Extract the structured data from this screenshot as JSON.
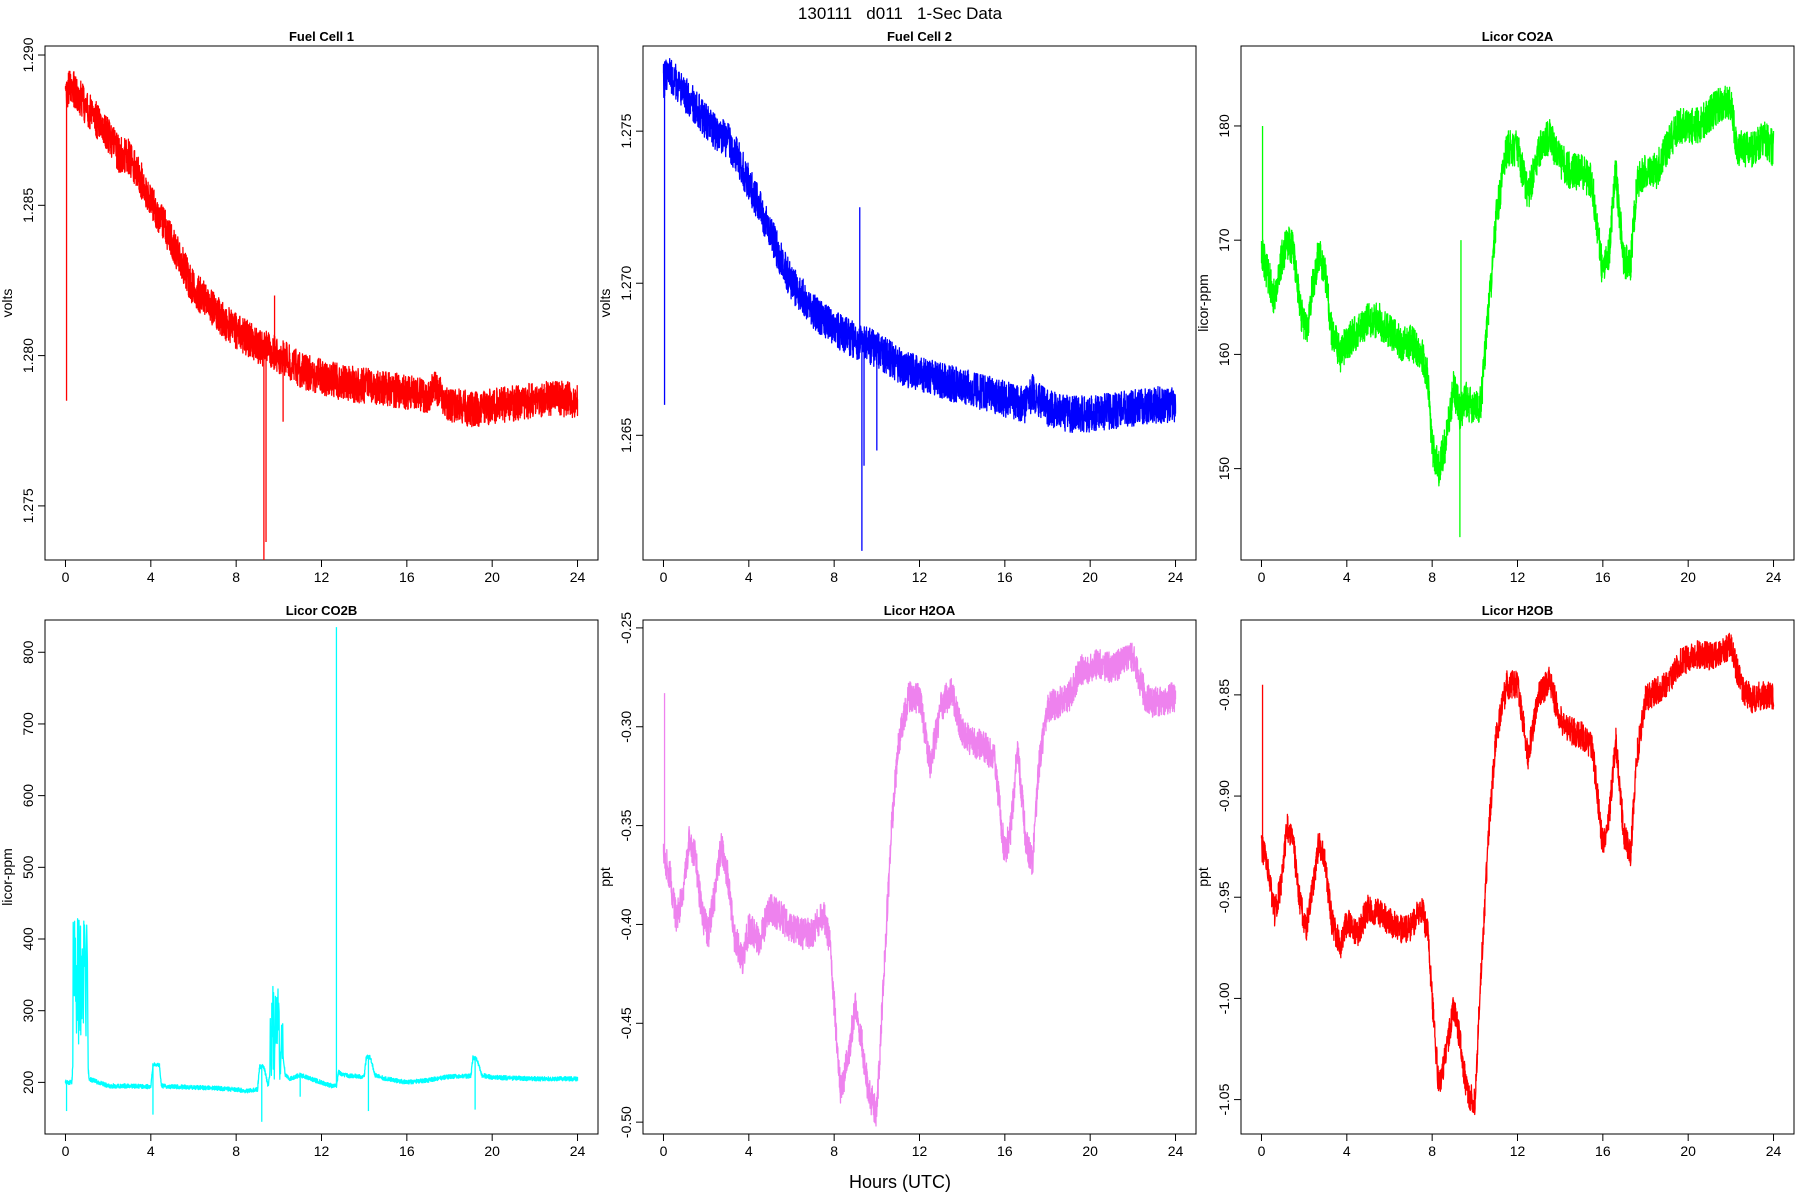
{
  "page": {
    "title": "130111   d011   1-Sec Data",
    "xlabel": "Hours (UTC)"
  },
  "chart_data": [
    {
      "type": "line",
      "title": "Fuel Cell 1",
      "ylabel": "volts",
      "color": "#ff0000",
      "xlim": [
        0,
        24
      ],
      "ylim": [
        1.2732,
        1.2903
      ],
      "xticks": [
        "0",
        "4",
        "8",
        "12",
        "16",
        "20",
        "24"
      ],
      "yticks": [
        "1.275",
        "1.280",
        "1.285",
        "1.290"
      ],
      "noise": 0.0006,
      "x": [
        0,
        0.2,
        0.5,
        1,
        1.5,
        2,
        2.5,
        3,
        3.5,
        4,
        4.5,
        5,
        5.5,
        6,
        6.5,
        7,
        7.5,
        8,
        8.5,
        9,
        9.5,
        10,
        10.5,
        11,
        12,
        13,
        14,
        15,
        16,
        17,
        17.3,
        18,
        19,
        20,
        21,
        22,
        23,
        24
      ],
      "y": [
        1.2886,
        1.289,
        1.2888,
        1.2882,
        1.2878,
        1.2873,
        1.2867,
        1.2866,
        1.2859,
        1.2852,
        1.2845,
        1.2838,
        1.283,
        1.2822,
        1.2819,
        1.2815,
        1.2811,
        1.2808,
        1.2806,
        1.2803,
        1.2802,
        1.28,
        1.2798,
        1.2795,
        1.2793,
        1.2791,
        1.279,
        1.2789,
        1.2788,
        1.2786,
        1.2789,
        1.2784,
        1.2782,
        1.2783,
        1.2784,
        1.2785,
        1.2786,
        1.2785
      ],
      "spikes": [
        [
          0.05,
          1.2785
        ],
        [
          9.3,
          1.2732
        ],
        [
          9.4,
          1.2738
        ],
        [
          9.8,
          1.282
        ],
        [
          10.2,
          1.2778
        ]
      ]
    },
    {
      "type": "line",
      "title": "Fuel Cell 2",
      "ylabel": "volts",
      "color": "#0000ff",
      "xlim": [
        0,
        24
      ],
      "ylim": [
        1.2609,
        1.2778
      ],
      "xticks": [
        "0",
        "4",
        "8",
        "12",
        "16",
        "20",
        "24"
      ],
      "yticks": [
        "1.265",
        "1.270",
        "1.275"
      ],
      "noise": 0.0006,
      "x": [
        0,
        0.2,
        0.5,
        1,
        1.5,
        2,
        2.5,
        3,
        3.5,
        4,
        4.5,
        5,
        5.5,
        6,
        6.5,
        7,
        7.5,
        8,
        8.5,
        9,
        9.5,
        10,
        10.5,
        11,
        12,
        13,
        14,
        15,
        16,
        17,
        17.3,
        18,
        19,
        20,
        21,
        22,
        23,
        24
      ],
      "y": [
        1.2766,
        1.277,
        1.2767,
        1.2762,
        1.2758,
        1.2753,
        1.2749,
        1.2747,
        1.2741,
        1.2733,
        1.2725,
        1.2717,
        1.2708,
        1.27,
        1.2696,
        1.2691,
        1.2688,
        1.2685,
        1.2683,
        1.2681,
        1.268,
        1.2678,
        1.2676,
        1.2673,
        1.267,
        1.2668,
        1.2666,
        1.2664,
        1.2662,
        1.266,
        1.2664,
        1.2659,
        1.2657,
        1.2657,
        1.2658,
        1.2659,
        1.266,
        1.266
      ],
      "spikes": [
        [
          0.05,
          1.266
        ],
        [
          9.3,
          1.2612
        ],
        [
          9.2,
          1.2725
        ],
        [
          9.4,
          1.264
        ],
        [
          10.0,
          1.2645
        ]
      ]
    },
    {
      "type": "line",
      "title": "Licor CO2A",
      "ylabel": "licor-ppm",
      "color": "#00ff00",
      "xlim": [
        0,
        24
      ],
      "ylim": [
        142,
        187
      ],
      "xticks": [
        "0",
        "4",
        "8",
        "12",
        "16",
        "20",
        "24"
      ],
      "yticks": [
        "150",
        "160",
        "170",
        "180"
      ],
      "noise": 1.6,
      "x": [
        0,
        0.3,
        0.6,
        0.9,
        1.2,
        1.5,
        1.8,
        2.1,
        2.4,
        2.7,
        3.0,
        3.3,
        3.7,
        4.0,
        4.5,
        5.0,
        5.5,
        6.0,
        6.5,
        7.0,
        7.5,
        7.8,
        8.0,
        8.3,
        8.6,
        9.0,
        9.3,
        9.6,
        10.0,
        10.3,
        10.7,
        11.0,
        11.5,
        12.0,
        12.5,
        13.0,
        13.5,
        14.0,
        14.5,
        15.0,
        15.5,
        16.0,
        16.3,
        16.6,
        17.0,
        17.3,
        17.6,
        18.0,
        18.5,
        19.0,
        19.5,
        20.0,
        20.5,
        21.0,
        21.5,
        22.0,
        22.3,
        22.6,
        23.0,
        23.5,
        24.0
      ],
      "y": [
        169,
        167,
        165,
        168,
        170,
        169,
        164,
        162,
        166,
        169,
        167,
        162,
        160,
        161,
        162,
        163,
        163,
        162,
        161,
        161,
        160,
        158,
        152,
        150,
        152,
        157,
        155,
        156,
        155,
        156,
        165,
        172,
        178,
        178,
        174,
        178,
        179,
        177,
        176,
        176,
        175,
        167,
        169,
        176,
        168,
        168,
        175,
        176,
        176,
        178,
        180,
        180,
        180,
        181,
        182,
        182,
        178,
        178,
        178,
        179,
        178
      ],
      "spikes": [
        [
          0.05,
          180
        ],
        [
          9.3,
          144
        ],
        [
          9.35,
          170
        ]
      ]
    },
    {
      "type": "line",
      "title": "Licor CO2B",
      "ylabel": "licor-ppm",
      "color": "#00ffff",
      "xlim": [
        0,
        24
      ],
      "ylim": [
        128,
        845
      ],
      "xticks": [
        "0",
        "4",
        "8",
        "12",
        "16",
        "20",
        "24"
      ],
      "yticks": [
        "200",
        "300",
        "400",
        "500",
        "600",
        "700",
        "800"
      ],
      "noise": 3,
      "x": [
        0,
        0.3,
        0.5,
        0.7,
        0.9,
        1.1,
        2.0,
        3.0,
        4.0,
        4.1,
        4.4,
        4.5,
        5.0,
        6.0,
        7.0,
        8.0,
        8.5,
        9.0,
        9.1,
        9.3,
        9.5,
        9.7,
        9.9,
        10.1,
        10.3,
        10.5,
        11.0,
        11.5,
        12.0,
        12.5,
        12.7,
        12.8,
        13.0,
        14.0,
        14.1,
        14.3,
        14.5,
        15.0,
        16.0,
        17.0,
        17.5,
        18.0,
        19.0,
        19.1,
        19.3,
        19.5,
        20.0,
        21.0,
        22.0,
        23.0,
        24.0
      ],
      "y": [
        200,
        200,
        310,
        320,
        300,
        205,
        195,
        195,
        194,
        225,
        225,
        195,
        194,
        193,
        192,
        190,
        188,
        190,
        222,
        222,
        195,
        240,
        280,
        260,
        210,
        205,
        210,
        205,
        200,
        195,
        195,
        215,
        210,
        208,
        235,
        235,
        210,
        205,
        200,
        203,
        206,
        208,
        209,
        235,
        232,
        210,
        207,
        206,
        205,
        205,
        205
      ],
      "bursts": [
        [
          0.35,
          1.05,
          250,
          430
        ],
        [
          9.6,
          10.2,
          200,
          340
        ]
      ],
      "spikes": [
        [
          0.05,
          160
        ],
        [
          4.1,
          155
        ],
        [
          9.2,
          145
        ],
        [
          12.7,
          835
        ],
        [
          14.2,
          160
        ],
        [
          19.2,
          162
        ],
        [
          11.0,
          180
        ]
      ]
    },
    {
      "type": "line",
      "title": "Licor H2OA",
      "ylabel": "ppt",
      "color": "#ee82ee",
      "xlim": [
        0,
        24
      ],
      "ylim": [
        -0.506,
        -0.246
      ],
      "xticks": [
        "0",
        "4",
        "8",
        "12",
        "16",
        "20",
        "24"
      ],
      "yticks": [
        "-0.50",
        "-0.45",
        "-0.40",
        "-0.35",
        "-0.30",
        "-0.25"
      ],
      "noise": 0.008,
      "x": [
        0,
        0.3,
        0.6,
        0.9,
        1.2,
        1.5,
        1.8,
        2.1,
        2.4,
        2.7,
        3.0,
        3.3,
        3.7,
        4.0,
        4.5,
        5.0,
        5.5,
        6.0,
        6.5,
        7.0,
        7.5,
        7.8,
        8.0,
        8.3,
        8.6,
        9.0,
        9.3,
        9.6,
        10.0,
        10.3,
        10.7,
        11.0,
        11.5,
        12.0,
        12.5,
        13.0,
        13.5,
        14.0,
        14.5,
        15.0,
        15.5,
        16.0,
        16.3,
        16.6,
        17.0,
        17.3,
        17.6,
        18.0,
        18.5,
        19.0,
        19.5,
        20.0,
        20.5,
        21.0,
        21.5,
        22.0,
        22.3,
        22.6,
        23.0,
        23.5,
        24.0
      ],
      "y": [
        -0.365,
        -0.375,
        -0.398,
        -0.385,
        -0.358,
        -0.366,
        -0.395,
        -0.405,
        -0.385,
        -0.36,
        -0.375,
        -0.405,
        -0.418,
        -0.402,
        -0.408,
        -0.392,
        -0.396,
        -0.402,
        -0.405,
        -0.404,
        -0.395,
        -0.41,
        -0.44,
        -0.485,
        -0.47,
        -0.442,
        -0.46,
        -0.485,
        -0.495,
        -0.43,
        -0.35,
        -0.31,
        -0.285,
        -0.285,
        -0.32,
        -0.29,
        -0.282,
        -0.302,
        -0.308,
        -0.31,
        -0.315,
        -0.365,
        -0.35,
        -0.31,
        -0.36,
        -0.368,
        -0.32,
        -0.29,
        -0.288,
        -0.285,
        -0.272,
        -0.27,
        -0.268,
        -0.27,
        -0.268,
        -0.265,
        -0.275,
        -0.285,
        -0.288,
        -0.286,
        -0.285
      ],
      "spikes": [
        [
          0.05,
          -0.283
        ]
      ]
    },
    {
      "type": "line",
      "title": "Licor H2OB",
      "ylabel": "ppt",
      "color": "#ff0000",
      "xlim": [
        0,
        24
      ],
      "ylim": [
        -1.067,
        -0.813
      ],
      "xticks": [
        "0",
        "4",
        "8",
        "12",
        "16",
        "20",
        "24"
      ],
      "yticks": [
        "-1.05",
        "-1.00",
        "-0.95",
        "-0.90",
        "-0.85"
      ],
      "noise": 0.007,
      "x": [
        0,
        0.3,
        0.6,
        0.9,
        1.2,
        1.5,
        1.8,
        2.1,
        2.4,
        2.7,
        3.0,
        3.3,
        3.7,
        4.0,
        4.5,
        5.0,
        5.5,
        6.0,
        6.5,
        7.0,
        7.5,
        7.8,
        8.0,
        8.3,
        8.6,
        9.0,
        9.3,
        9.6,
        10.0,
        10.3,
        10.7,
        11.0,
        11.5,
        12.0,
        12.5,
        13.0,
        13.5,
        14.0,
        14.5,
        15.0,
        15.5,
        16.0,
        16.3,
        16.6,
        17.0,
        17.3,
        17.6,
        18.0,
        18.5,
        19.0,
        19.5,
        20.0,
        20.5,
        21.0,
        21.5,
        22.0,
        22.3,
        22.6,
        23.0,
        23.5,
        24.0
      ],
      "y": [
        -0.925,
        -0.935,
        -0.958,
        -0.945,
        -0.915,
        -0.924,
        -0.953,
        -0.965,
        -0.945,
        -0.922,
        -0.935,
        -0.962,
        -0.975,
        -0.962,
        -0.968,
        -0.955,
        -0.958,
        -0.962,
        -0.966,
        -0.965,
        -0.955,
        -0.968,
        -1.0,
        -1.043,
        -1.03,
        -1.005,
        -1.02,
        -1.045,
        -1.052,
        -0.985,
        -0.91,
        -0.87,
        -0.845,
        -0.845,
        -0.88,
        -0.85,
        -0.843,
        -0.862,
        -0.868,
        -0.87,
        -0.875,
        -0.925,
        -0.91,
        -0.872,
        -0.92,
        -0.928,
        -0.88,
        -0.852,
        -0.848,
        -0.845,
        -0.835,
        -0.832,
        -0.83,
        -0.831,
        -0.829,
        -0.826,
        -0.838,
        -0.848,
        -0.852,
        -0.85,
        -0.85
      ],
      "spikes": [
        [
          0.05,
          -0.845
        ]
      ]
    }
  ]
}
